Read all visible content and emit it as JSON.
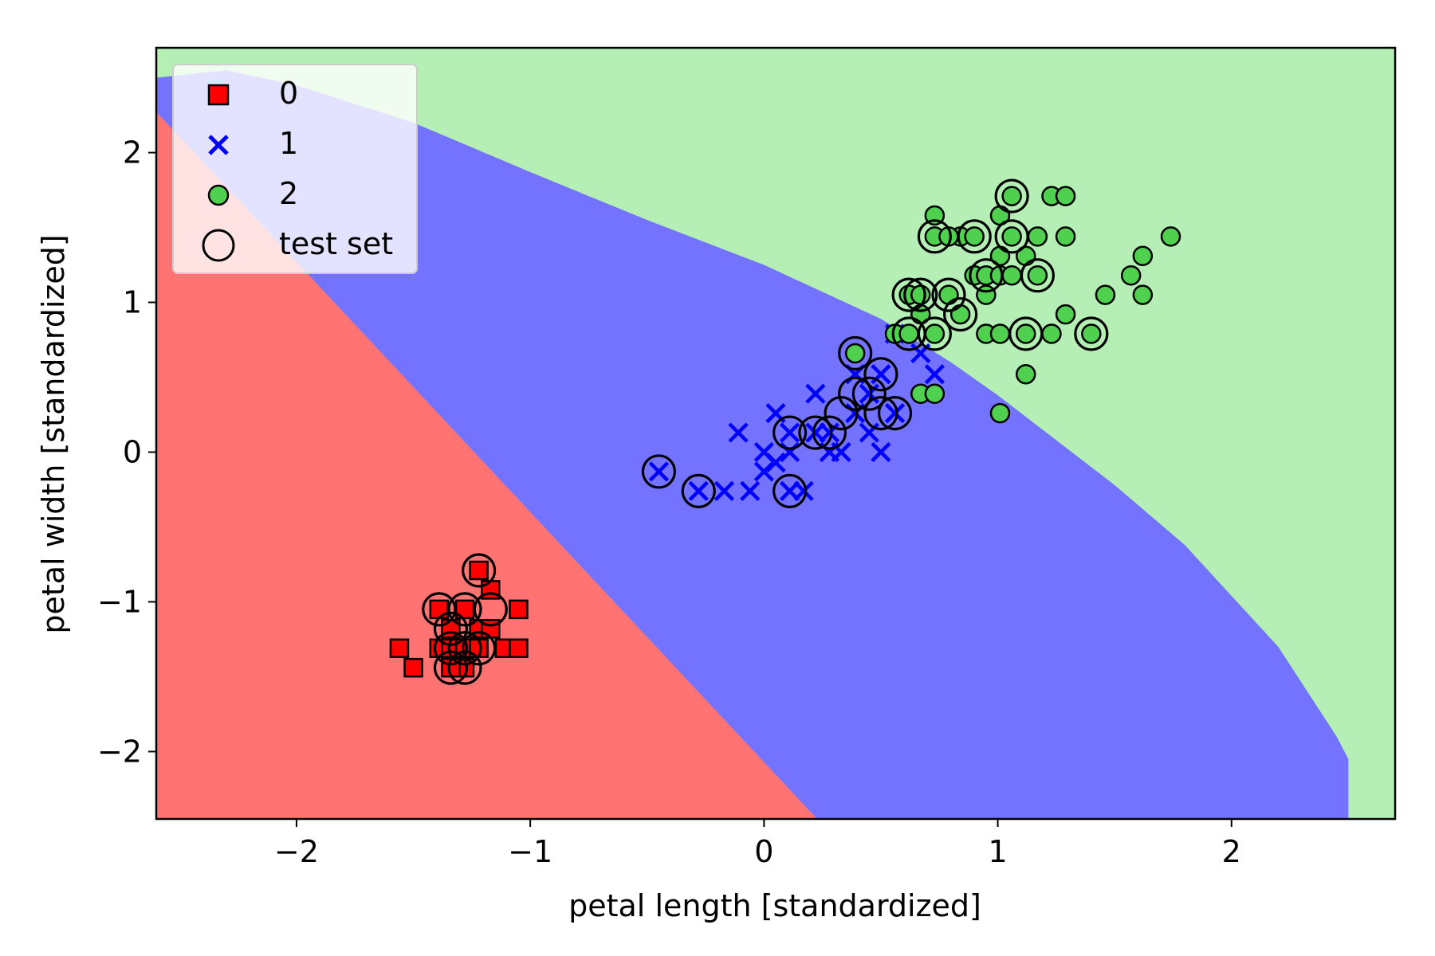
{
  "chart_data": {
    "type": "scatter",
    "title": "",
    "xlabel": "petal length [standardized]",
    "ylabel": "petal width [standardized]",
    "xlim": [
      -2.6,
      2.7
    ],
    "ylim": [
      -2.45,
      2.7
    ],
    "xticks": [
      -2,
      -1,
      0,
      1,
      2
    ],
    "yticks": [
      -2,
      -1,
      0,
      1,
      2
    ],
    "xtick_labels": [
      "−2",
      "−1",
      "0",
      "1",
      "2"
    ],
    "ytick_labels": [
      "−2",
      "−1",
      "0",
      "1",
      "2"
    ],
    "grid": false,
    "legend_placement": "upper-left",
    "regions": [
      {
        "class": "0",
        "color": "#ff7373"
      },
      {
        "class": "1",
        "color": "#7373ff"
      },
      {
        "class": "2",
        "color": "#b5efb5"
      }
    ],
    "series": [
      {
        "name": "0",
        "marker": "square",
        "color": "#ff0000",
        "points": [
          [
            -1.56,
            -1.31
          ],
          [
            -1.5,
            -1.44
          ],
          [
            -1.39,
            -1.31
          ],
          [
            -1.39,
            -1.05
          ],
          [
            -1.34,
            -1.18
          ],
          [
            -1.34,
            -1.31
          ],
          [
            -1.28,
            -1.05
          ],
          [
            -1.28,
            -1.31
          ],
          [
            -1.28,
            -1.44
          ],
          [
            -1.22,
            -0.79
          ],
          [
            -1.22,
            -1.18
          ],
          [
            -1.17,
            -0.92
          ],
          [
            -1.17,
            -1.18
          ],
          [
            -1.11,
            -1.31
          ],
          [
            -1.05,
            -1.05
          ],
          [
            -1.05,
            -1.31
          ],
          [
            -1.34,
            -1.44
          ],
          [
            -1.22,
            -1.31
          ]
        ]
      },
      {
        "name": "1",
        "marker": "x",
        "color": "#0000ff",
        "points": [
          [
            -0.45,
            -0.13
          ],
          [
            -0.28,
            -0.26
          ],
          [
            -0.17,
            -0.26
          ],
          [
            -0.11,
            0.13
          ],
          [
            -0.06,
            -0.26
          ],
          [
            0.0,
            -0.13
          ],
          [
            0.05,
            -0.07
          ],
          [
            0.05,
            0.26
          ],
          [
            0.11,
            0.13
          ],
          [
            0.11,
            -0.26
          ],
          [
            0.17,
            -0.26
          ],
          [
            0.22,
            0.13
          ],
          [
            0.22,
            0.39
          ],
          [
            0.28,
            0.13
          ],
          [
            0.33,
            0.0
          ],
          [
            0.39,
            0.26
          ],
          [
            0.39,
            0.52
          ],
          [
            0.45,
            0.13
          ],
          [
            0.45,
            0.39
          ],
          [
            0.5,
            0.0
          ],
          [
            0.5,
            0.52
          ],
          [
            0.56,
            0.26
          ],
          [
            0.56,
            0.79
          ],
          [
            0.67,
            0.66
          ],
          [
            0.73,
            0.52
          ],
          [
            0.28,
            0.0
          ],
          [
            0.11,
            0.0
          ],
          [
            0.0,
            0.0
          ]
        ]
      },
      {
        "name": "2",
        "marker": "circle",
        "color": "#4fd04f",
        "points": [
          [
            0.39,
            0.66
          ],
          [
            0.56,
            0.79
          ],
          [
            0.62,
            1.05
          ],
          [
            0.62,
            0.79
          ],
          [
            0.67,
            0.39
          ],
          [
            0.67,
            1.05
          ],
          [
            0.73,
            1.58
          ],
          [
            0.73,
            1.44
          ],
          [
            0.73,
            0.79
          ],
          [
            0.73,
            0.39
          ],
          [
            0.79,
            1.05
          ],
          [
            0.84,
            1.44
          ],
          [
            0.84,
            0.92
          ],
          [
            0.9,
            1.18
          ],
          [
            0.9,
            1.44
          ],
          [
            0.95,
            0.79
          ],
          [
            0.95,
            1.18
          ],
          [
            1.01,
            0.79
          ],
          [
            1.01,
            1.18
          ],
          [
            1.01,
            1.31
          ],
          [
            1.01,
            1.58
          ],
          [
            1.01,
            0.26
          ],
          [
            1.06,
            1.71
          ],
          [
            1.06,
            1.44
          ],
          [
            1.12,
            1.31
          ],
          [
            1.12,
            0.79
          ],
          [
            1.12,
            0.52
          ],
          [
            1.17,
            1.44
          ],
          [
            1.17,
            1.18
          ],
          [
            1.23,
            0.79
          ],
          [
            1.23,
            1.71
          ],
          [
            1.29,
            1.71
          ],
          [
            1.29,
            1.44
          ],
          [
            1.29,
            0.92
          ],
          [
            1.4,
            0.79
          ],
          [
            1.46,
            1.05
          ],
          [
            1.57,
            1.18
          ],
          [
            1.62,
            1.31
          ],
          [
            1.62,
            1.05
          ],
          [
            1.74,
            1.44
          ],
          [
            0.67,
            0.92
          ],
          [
            0.79,
            1.44
          ],
          [
            1.06,
            1.18
          ],
          [
            0.95,
            1.05
          ]
        ]
      },
      {
        "name": "test set",
        "marker": "open-circle",
        "color": "#000000",
        "points": [
          [
            -1.39,
            -1.05
          ],
          [
            -1.28,
            -1.05
          ],
          [
            -1.22,
            -0.79
          ],
          [
            -1.17,
            -1.05
          ],
          [
            -1.34,
            -1.18
          ],
          [
            -1.34,
            -1.31
          ],
          [
            -1.28,
            -1.31
          ],
          [
            -1.22,
            -1.31
          ],
          [
            -1.34,
            -1.44
          ],
          [
            -1.28,
            -1.44
          ],
          [
            -0.45,
            -0.13
          ],
          [
            -0.28,
            -0.26
          ],
          [
            0.11,
            0.13
          ],
          [
            0.11,
            -0.26
          ],
          [
            0.22,
            0.13
          ],
          [
            0.28,
            0.13
          ],
          [
            0.33,
            0.26
          ],
          [
            0.39,
            0.39
          ],
          [
            0.39,
            0.66
          ],
          [
            0.45,
            0.39
          ],
          [
            0.5,
            0.52
          ],
          [
            0.5,
            0.26
          ],
          [
            0.56,
            0.26
          ],
          [
            0.62,
            1.05
          ],
          [
            0.62,
            0.79
          ],
          [
            0.67,
            1.05
          ],
          [
            0.73,
            1.44
          ],
          [
            0.73,
            0.79
          ],
          [
            0.79,
            1.05
          ],
          [
            0.84,
            0.92
          ],
          [
            0.9,
            1.44
          ],
          [
            0.95,
            1.18
          ],
          [
            1.06,
            1.71
          ],
          [
            1.06,
            1.44
          ],
          [
            1.12,
            0.79
          ],
          [
            1.17,
            1.18
          ],
          [
            1.4,
            0.79
          ]
        ]
      }
    ]
  },
  "legend": {
    "items": [
      {
        "label": "0"
      },
      {
        "label": "1"
      },
      {
        "label": "2"
      },
      {
        "label": "test set"
      }
    ]
  }
}
